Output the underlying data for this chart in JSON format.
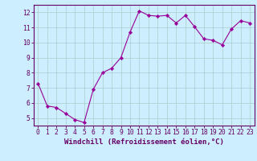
{
  "x": [
    0,
    1,
    2,
    3,
    4,
    5,
    6,
    7,
    8,
    9,
    10,
    11,
    12,
    13,
    14,
    15,
    16,
    17,
    18,
    19,
    20,
    21,
    22,
    23
  ],
  "y": [
    7.3,
    5.8,
    5.7,
    5.3,
    4.9,
    4.7,
    6.9,
    8.0,
    8.3,
    9.0,
    10.7,
    12.1,
    11.8,
    11.75,
    11.8,
    11.3,
    11.8,
    11.05,
    10.25,
    10.15,
    9.85,
    10.9,
    11.45,
    11.3
  ],
  "line_color": "#990099",
  "marker_color": "#990099",
  "bg_color": "#cceeff",
  "grid_color": "#aacccc",
  "axis_color": "#660066",
  "xlabel": "Windchill (Refroidissement éolien,°C)",
  "ylim": [
    4.5,
    12.5
  ],
  "yticks": [
    5,
    6,
    7,
    8,
    9,
    10,
    11,
    12
  ],
  "xlim": [
    -0.5,
    23.5
  ],
  "xticks": [
    0,
    1,
    2,
    3,
    4,
    5,
    6,
    7,
    8,
    9,
    10,
    11,
    12,
    13,
    14,
    15,
    16,
    17,
    18,
    19,
    20,
    21,
    22,
    23
  ],
  "tick_label_color": "#660066",
  "xlabel_color": "#660066",
  "xlabel_fontsize": 6.5,
  "tick_fontsize": 5.8
}
